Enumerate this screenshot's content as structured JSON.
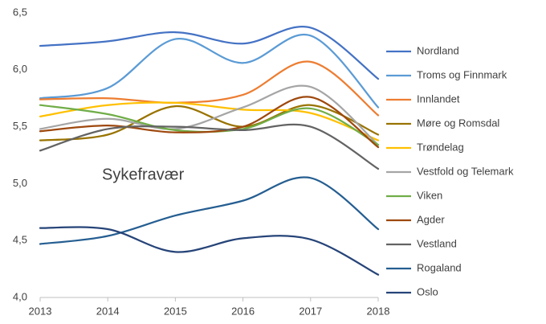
{
  "chart_data": {
    "type": "line",
    "annotation": "Sykefravær",
    "categories": [
      "2013",
      "2014",
      "2015",
      "2016",
      "2017",
      "2018"
    ],
    "ylim": [
      4.0,
      6.5
    ],
    "yticks": [
      {
        "value": 4.0,
        "label": "4,0"
      },
      {
        "value": 4.5,
        "label": "4,5"
      },
      {
        "value": 5.0,
        "label": "5,0"
      },
      {
        "value": 5.5,
        "label": "5,5"
      },
      {
        "value": 6.0,
        "label": "6,0"
      },
      {
        "value": 6.5,
        "label": "6,5"
      }
    ],
    "smooth": true,
    "legend": "right",
    "series": [
      {
        "name": "Nordland",
        "color": "#4472c4",
        "values": [
          6.21,
          6.25,
          6.33,
          6.23,
          6.37,
          5.92
        ]
      },
      {
        "name": "Troms og Finnmark",
        "color": "#5b9bd5",
        "values": [
          5.75,
          5.84,
          6.27,
          6.06,
          6.3,
          5.67
        ]
      },
      {
        "name": "Innlandet",
        "color": "#ed7d31",
        "values": [
          5.74,
          5.75,
          5.71,
          5.78,
          6.07,
          5.6
        ]
      },
      {
        "name": "Møre og Romsdal",
        "color": "#997300",
        "values": [
          5.38,
          5.43,
          5.68,
          5.5,
          5.69,
          5.43
        ]
      },
      {
        "name": "Trøndelag",
        "color": "#ffc000",
        "values": [
          5.59,
          5.69,
          5.71,
          5.65,
          5.62,
          5.38
        ]
      },
      {
        "name": "Vestfold og Telemark",
        "color": "#a5a5a5",
        "values": [
          5.48,
          5.57,
          5.48,
          5.67,
          5.85,
          5.34
        ]
      },
      {
        "name": "Viken",
        "color": "#70ad47",
        "values": [
          5.69,
          5.61,
          5.47,
          5.48,
          5.66,
          5.34
        ]
      },
      {
        "name": "Agder",
        "color": "#9e480e",
        "values": [
          5.46,
          5.51,
          5.45,
          5.5,
          5.76,
          5.32
        ]
      },
      {
        "name": "Vestland",
        "color": "#636363",
        "values": [
          5.29,
          5.48,
          5.5,
          5.47,
          5.5,
          5.13
        ]
      },
      {
        "name": "Rogaland",
        "color": "#255e91",
        "values": [
          4.47,
          4.54,
          4.72,
          4.85,
          5.05,
          4.6
        ]
      },
      {
        "name": "Oslo",
        "color": "#264478",
        "values": [
          4.61,
          4.6,
          4.4,
          4.52,
          4.51,
          4.2
        ]
      }
    ]
  }
}
